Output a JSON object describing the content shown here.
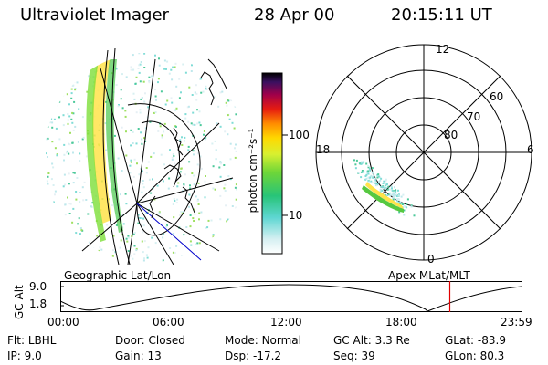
{
  "header": {
    "instrument": "Ultraviolet Imager",
    "date": "28 Apr 00",
    "time": "20:15:11 UT"
  },
  "colorbar": {
    "unit_label": "photon cm⁻²s⁻¹",
    "ticks": [
      "100",
      "10"
    ]
  },
  "polar": {
    "mlt_labels": [
      "12",
      "18",
      "6",
      "0"
    ],
    "lat_labels": [
      "60",
      "70",
      "80"
    ]
  },
  "left_caption": "Geographic Lat/Lon",
  "right_caption": "Apex MLat/MLT",
  "orbit": {
    "axis_label": "GC Alt",
    "y_ticks": [
      "9.0",
      "1.8"
    ],
    "x_ticks": [
      "00:00",
      "06:00",
      "12:00",
      "18:00",
      "23:59"
    ],
    "current_fraction": 0.8445
  },
  "info": {
    "row1": [
      {
        "key": "Flt:",
        "value": "LBHL"
      },
      {
        "key": "Door:",
        "value": "Closed"
      },
      {
        "key": "Mode:",
        "value": "Normal"
      },
      {
        "key": "GC Alt:",
        "value": "3.3 Re"
      },
      {
        "key": "GLat:",
        "value": "-83.9"
      }
    ],
    "row2": [
      {
        "key": "IP:",
        "value": "9.0"
      },
      {
        "key": "Gain:",
        "value": "13"
      },
      {
        "key": "Dsp:",
        "value": "-17.2"
      },
      {
        "key": "Seq:",
        "value": "39"
      },
      {
        "key": "GLon:",
        "value": "80.3"
      }
    ]
  }
}
